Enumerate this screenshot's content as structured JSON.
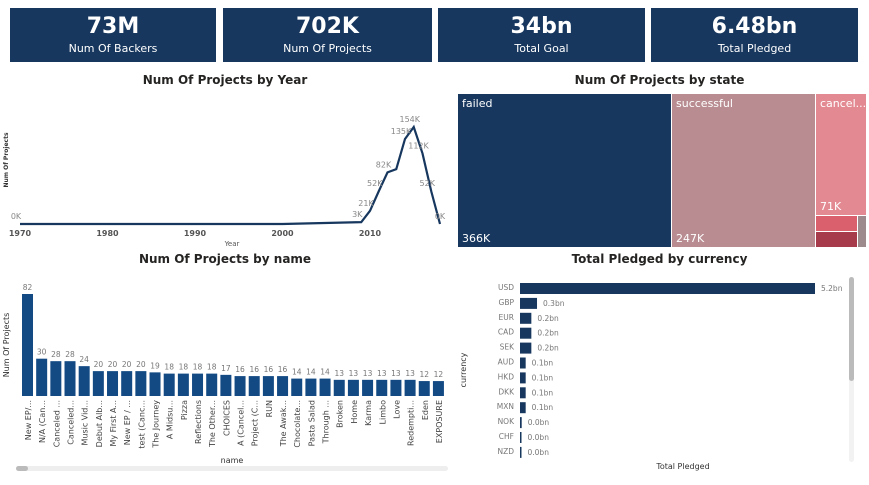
{
  "kpis": [
    {
      "value": "73M",
      "label": "Num Of Backers"
    },
    {
      "value": "702K",
      "label": "Num Of Projects"
    },
    {
      "value": "34bn",
      "label": "Total Goal"
    },
    {
      "value": "6.48bn",
      "label": "Total Pledged"
    }
  ],
  "colors": {
    "primary": "#17375e",
    "successful": "#b88c91",
    "canceled": "#e38992",
    "small1": "#d9606c",
    "small2": "#a83b4b",
    "small3": "#9c8a8c"
  },
  "chart_data": [
    {
      "type": "line",
      "title": "Num Of Projects by Year",
      "xlabel": "Year",
      "ylabel": "Num Of Projects",
      "xticks": [
        "1970",
        "1980",
        "1990",
        "2000",
        "2010"
      ],
      "xlim": [
        1970,
        2018
      ],
      "ylim": [
        0,
        170000
      ],
      "x": [
        1970,
        1980,
        1990,
        2000,
        2009,
        2010,
        2011,
        2012,
        2013,
        2014,
        2015,
        2016,
        2017,
        2018
      ],
      "y": [
        0,
        0,
        0,
        0,
        3000,
        21000,
        52000,
        82000,
        87000,
        135000,
        154000,
        112000,
        52000,
        0
      ],
      "labels": [
        {
          "x": 1970,
          "text": "0K"
        },
        {
          "x": 2009,
          "text": "3K"
        },
        {
          "x": 2010,
          "text": "21K"
        },
        {
          "x": 2011,
          "text": "52K"
        },
        {
          "x": 2012,
          "text": "82K"
        },
        {
          "x": 2014,
          "text": "135K"
        },
        {
          "x": 2015,
          "text": "154K"
        },
        {
          "x": 2016,
          "text": "112K"
        },
        {
          "x": 2017,
          "text": "52K"
        },
        {
          "x": 2018,
          "text": "0K"
        }
      ]
    },
    {
      "type": "treemap",
      "title": "Num Of Projects by state",
      "items": [
        {
          "name": "failed",
          "label": "366K",
          "value": 366000
        },
        {
          "name": "successful",
          "label": "247K",
          "value": 247000
        },
        {
          "name": "cancel...",
          "label": "71K",
          "value": 71000
        }
      ]
    },
    {
      "type": "bar",
      "title": "Num Of Projects by name",
      "xlabel": "name",
      "ylabel": "Num Of Projects",
      "categories": [
        "New EP/...",
        "N/A (Can...",
        "Canceled ...",
        "Canceled...",
        "Music Vid...",
        "Debut Alb...",
        "My First A...",
        "New EP / ...",
        "test (Canc...",
        "The Journey",
        "A Midsu...",
        "Pizza",
        "Reflections",
        "The Other...",
        "CHOICES",
        "A (Cancel...",
        "Project (C...",
        "RUN",
        "The Awak...",
        "Chocolate...",
        "Pasta Salad",
        "Through ...",
        "Broken",
        "Home",
        "Karma",
        "Limbo",
        "Love",
        "Redempti...",
        "Eden",
        "EXPOSURE"
      ],
      "values": [
        82,
        30,
        28,
        28,
        24,
        20,
        20,
        20,
        20,
        19,
        18,
        18,
        18,
        18,
        17,
        16,
        16,
        16,
        16,
        14,
        14,
        14,
        13,
        13,
        13,
        13,
        13,
        13,
        12,
        12
      ]
    },
    {
      "type": "bar",
      "orientation": "horizontal",
      "title": "Total Pledged by currency",
      "xlabel": "Total Pledged",
      "ylabel": "currency",
      "categories": [
        "USD",
        "GBP",
        "EUR",
        "CAD",
        "SEK",
        "AUD",
        "HKD",
        "DKK",
        "MXN",
        "NOK",
        "CHF",
        "NZD"
      ],
      "values": [
        5.2,
        0.3,
        0.2,
        0.2,
        0.2,
        0.1,
        0.1,
        0.1,
        0.1,
        0.03,
        0.02,
        0.02
      ],
      "labels": [
        "5.2bn",
        "0.3bn",
        "0.2bn",
        "0.2bn",
        "0.2bn",
        "0.1bn",
        "0.1bn",
        "0.1bn",
        "0.1bn",
        "0.0bn",
        "0.0bn",
        "0.0bn"
      ]
    }
  ]
}
